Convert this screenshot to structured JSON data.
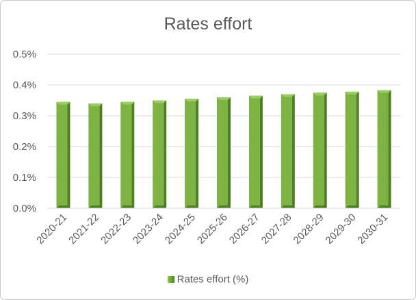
{
  "chart_data": {
    "type": "bar",
    "title": "Rates effort",
    "categories": [
      "2020-21",
      "2021-22",
      "2022-23",
      "2023-24",
      "2024-25",
      "2025-26",
      "2026-27",
      "2027-28",
      "2028-29",
      "2029-30",
      "2030-31"
    ],
    "series": [
      {
        "name": "Rates effort (%)",
        "values": [
          0.345,
          0.34,
          0.345,
          0.35,
          0.355,
          0.36,
          0.365,
          0.37,
          0.375,
          0.378,
          0.383
        ]
      }
    ],
    "yticks": [
      "0.0%",
      "0.1%",
      "0.2%",
      "0.3%",
      "0.4%",
      "0.5%"
    ],
    "ylim": [
      0,
      0.5
    ],
    "grid": true,
    "legend_position": "bottom",
    "colors": {
      "bar_front": "#7cb342",
      "bar_dark": "#4f7d22",
      "bar_top": "#9ccc65",
      "grid": "#d9d9d9",
      "text": "#595959"
    }
  }
}
